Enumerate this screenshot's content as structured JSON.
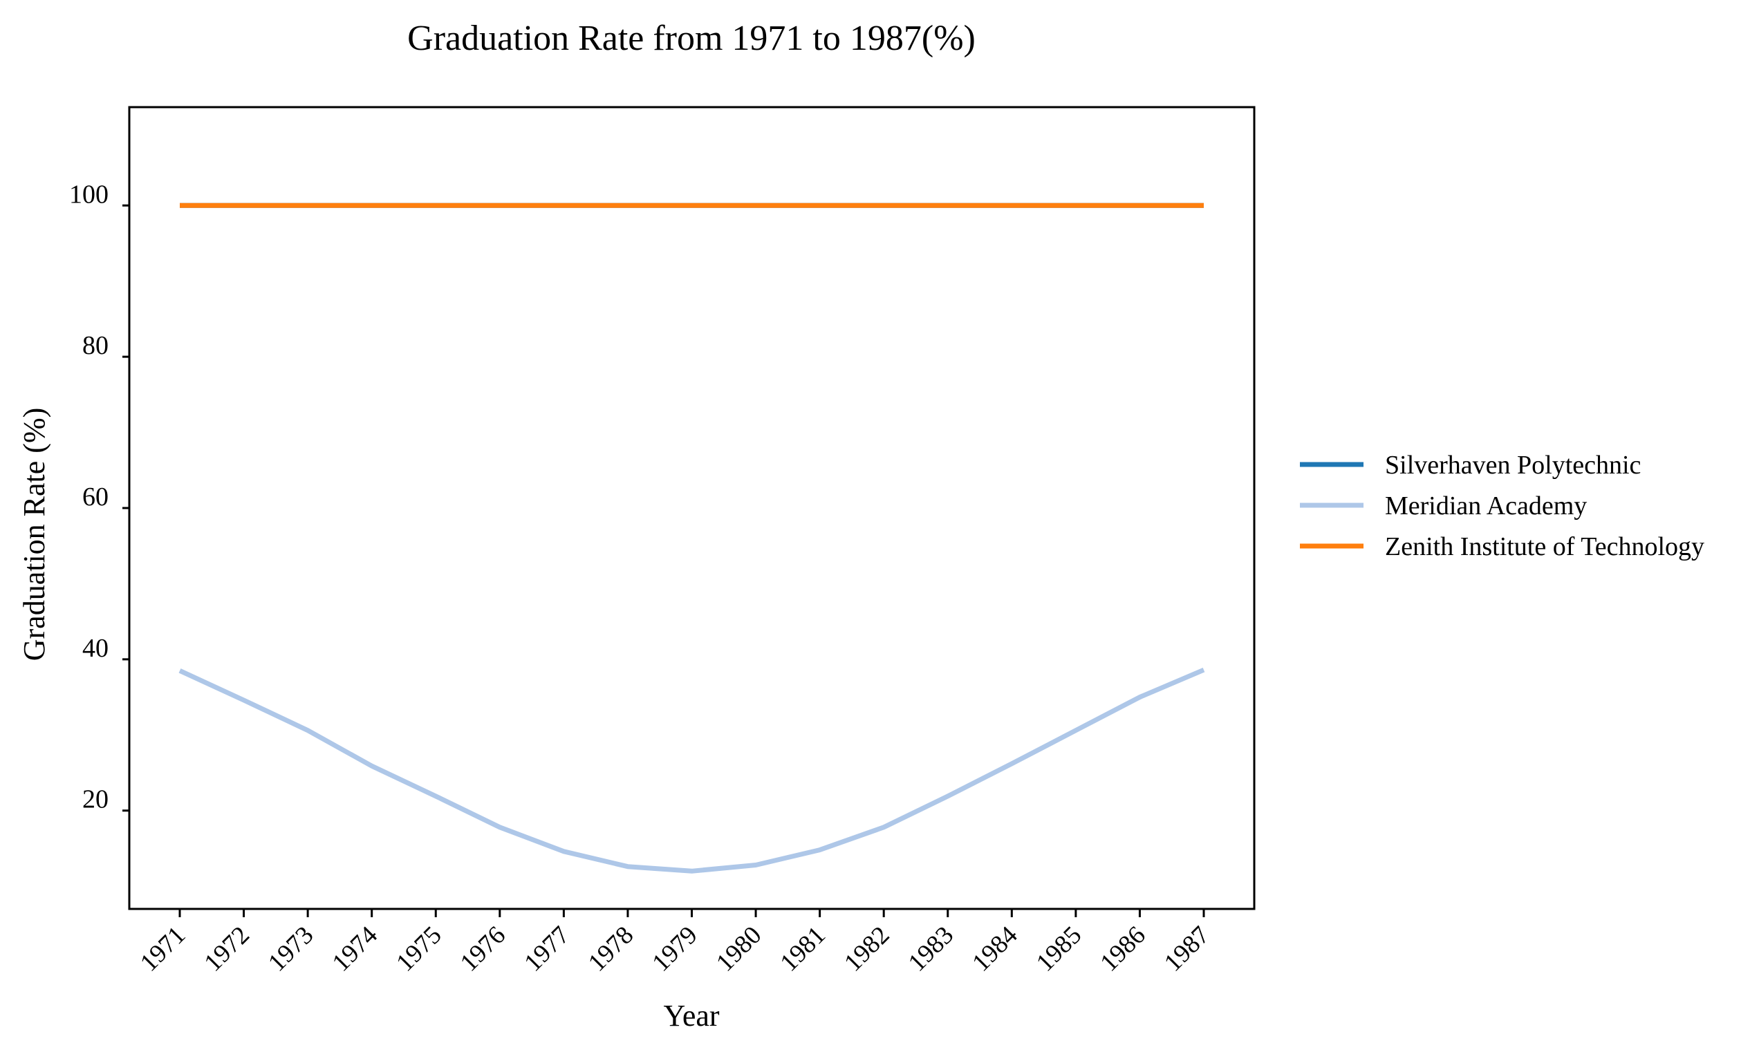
{
  "chart_data": {
    "type": "line",
    "title": "Graduation Rate from 1971 to 1987(%)",
    "xlabel": "Year",
    "ylabel": "Graduation Rate (%)",
    "x": [
      "1971",
      "1972",
      "1973",
      "1974",
      "1975",
      "1976",
      "1977",
      "1978",
      "1979",
      "1980",
      "1981",
      "1982",
      "1983",
      "1984",
      "1985",
      "1986",
      "1987"
    ],
    "ylim": [
      7,
      113
    ],
    "yticks": [
      20,
      40,
      60,
      80,
      100
    ],
    "grid": false,
    "legend_position": "right",
    "series": [
      {
        "name": "Silverhaven Polytechnic",
        "color": "#1f77b4",
        "values": [
          100,
          100,
          100,
          100,
          100,
          100,
          100,
          100,
          100,
          100,
          100,
          100,
          100,
          100,
          100,
          100,
          100
        ]
      },
      {
        "name": "Meridian Academy",
        "color": "#aec7e8",
        "values": [
          38.5,
          34.6,
          30.6,
          25.9,
          21.9,
          17.8,
          14.6,
          12.6,
          12.0,
          12.8,
          14.8,
          17.8,
          21.9,
          26.2,
          30.6,
          35.0,
          38.6
        ]
      },
      {
        "name": "Zenith Institute of Technology",
        "color": "#ff7f0e",
        "values": [
          100,
          100,
          100,
          100,
          100,
          100,
          100,
          100,
          100,
          100,
          100,
          100,
          100,
          100,
          100,
          100,
          100
        ]
      }
    ]
  }
}
